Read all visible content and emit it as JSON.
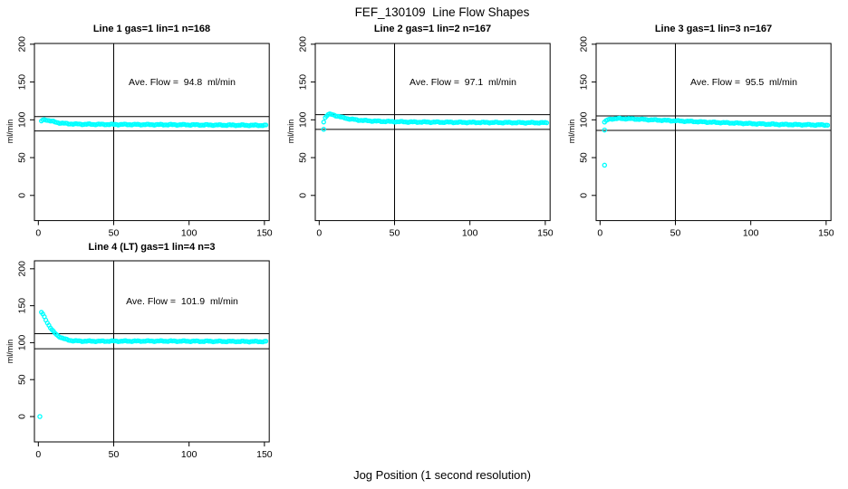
{
  "figure": {
    "title": "FEF_130109  Line Flow Shapes",
    "xlabel": "Jog Position (1 second resolution)",
    "background_color": "#ffffff",
    "point_color": "#00ffff",
    "line_color": "#000000"
  },
  "chart_data": [
    {
      "type": "scatter",
      "title": "Line 1 gas=1 lin=1 n=168",
      "gas": 1,
      "lin": 1,
      "n": 168,
      "annotation": "Ave. Flow =  94.8  ml/min",
      "ave_flow_ml_min": 94.8,
      "ylabel": "ml/min",
      "x_ticks": [
        0,
        50,
        100,
        150
      ],
      "y_ticks": [
        0,
        50,
        100,
        150,
        200
      ],
      "xlim": [
        -2.6,
        153.2
      ],
      "ylim": [
        -33.3,
        201
      ],
      "vline_x": 50,
      "hlines_y": [
        104.3,
        85.3
      ],
      "grid": false,
      "series": {
        "name": "line-1-flow",
        "anchors": [
          [
            2,
            98.3
          ],
          [
            3,
            99.6
          ],
          [
            4,
            100.2
          ],
          [
            5,
            100.1
          ],
          [
            6,
            99.6
          ],
          [
            8,
            98.6
          ],
          [
            10,
            97.6
          ],
          [
            12,
            96.7
          ],
          [
            15,
            95.7
          ],
          [
            20,
            94.8
          ],
          [
            25,
            94.4
          ],
          [
            30,
            94.2
          ],
          [
            40,
            94.0
          ],
          [
            50,
            93.9
          ],
          [
            60,
            93.8
          ],
          [
            80,
            93.6
          ],
          [
            100,
            93.4
          ],
          [
            120,
            93.1
          ],
          [
            135,
            92.9
          ],
          [
            151,
            92.7
          ]
        ]
      },
      "outliers": []
    },
    {
      "type": "scatter",
      "title": "Line 2 gas=1 lin=2 n=167",
      "gas": 1,
      "lin": 2,
      "n": 167,
      "annotation": "Ave. Flow =  97.1  ml/min",
      "ave_flow_ml_min": 97.1,
      "ylabel": "ml/min",
      "x_ticks": [
        0,
        50,
        100,
        150
      ],
      "y_ticks": [
        0,
        50,
        100,
        150,
        200
      ],
      "xlim": [
        -2.6,
        153.2
      ],
      "ylim": [
        -33.3,
        201
      ],
      "vline_x": 50,
      "hlines_y": [
        106.8,
        87.4
      ],
      "grid": false,
      "series": {
        "name": "line-2-flow",
        "anchors": [
          [
            3,
            97.5
          ],
          [
            4,
            103.0
          ],
          [
            5,
            105.5
          ],
          [
            6,
            106.8
          ],
          [
            7,
            107.3
          ],
          [
            8,
            107.2
          ],
          [
            10,
            106.2
          ],
          [
            12,
            105.1
          ],
          [
            15,
            103.3
          ],
          [
            18,
            101.9
          ],
          [
            21,
            100.9
          ],
          [
            25,
            99.9
          ],
          [
            30,
            99.0
          ],
          [
            40,
            98.1
          ],
          [
            50,
            97.6
          ],
          [
            60,
            97.2
          ],
          [
            80,
            96.9
          ],
          [
            100,
            96.6
          ],
          [
            120,
            96.4
          ],
          [
            151,
            96.1
          ]
        ]
      },
      "outliers": [
        [
          3,
          87.5
        ]
      ]
    },
    {
      "type": "scatter",
      "title": "Line 3 gas=1 lin=3 n=167",
      "gas": 1,
      "lin": 3,
      "n": 167,
      "annotation": "Ave. Flow =  95.5  ml/min",
      "ave_flow_ml_min": 95.5,
      "ylabel": "ml/min",
      "x_ticks": [
        0,
        50,
        100,
        150
      ],
      "y_ticks": [
        0,
        50,
        100,
        150,
        200
      ],
      "xlim": [
        -2.6,
        153.2
      ],
      "ylim": [
        -33.3,
        201
      ],
      "vline_x": 50,
      "hlines_y": [
        105.1,
        86.0
      ],
      "grid": false,
      "series": {
        "name": "line-3-flow",
        "anchors": [
          [
            4,
            98.5
          ],
          [
            5,
            99.8
          ],
          [
            6,
            100.6
          ],
          [
            8,
            101.3
          ],
          [
            10,
            101.6
          ],
          [
            15,
            101.6
          ],
          [
            20,
            101.4
          ],
          [
            25,
            100.9
          ],
          [
            30,
            100.4
          ],
          [
            40,
            99.5
          ],
          [
            50,
            98.7
          ],
          [
            60,
            97.9
          ],
          [
            70,
            97.1
          ],
          [
            80,
            96.4
          ],
          [
            90,
            95.7
          ],
          [
            100,
            95.0
          ],
          [
            110,
            94.4
          ],
          [
            120,
            93.9
          ],
          [
            135,
            93.5
          ],
          [
            151,
            93.1
          ]
        ]
      },
      "outliers": [
        [
          3,
          97.0
        ],
        [
          3,
          86.5
        ],
        [
          3,
          40.0
        ]
      ]
    },
    {
      "type": "scatter",
      "title": "Line 4 (LT) gas=1 lin=4 n=3",
      "gas": 1,
      "lin": 4,
      "n": 3,
      "annotation": "Ave. Flow =  101.9  ml/min",
      "ave_flow_ml_min": 101.9,
      "ylabel": "ml/min",
      "x_ticks": [
        0,
        50,
        100,
        150
      ],
      "y_ticks": [
        0,
        50,
        100,
        150,
        200
      ],
      "xlim": [
        -2.6,
        153.2
      ],
      "ylim": [
        -34.3,
        210.8
      ],
      "vline_x": 50,
      "hlines_y": [
        112.1,
        91.7
      ],
      "grid": false,
      "series": {
        "name": "line-4-flow",
        "anchors": [
          [
            2,
            141.0
          ],
          [
            3,
            138.3
          ],
          [
            4,
            134.8
          ],
          [
            5,
            131.0
          ],
          [
            6,
            127.2
          ],
          [
            7,
            123.6
          ],
          [
            8,
            120.3
          ],
          [
            9,
            117.4
          ],
          [
            10,
            114.9
          ],
          [
            11,
            112.8
          ],
          [
            12,
            111.0
          ],
          [
            13,
            109.5
          ],
          [
            14,
            108.2
          ],
          [
            15,
            107.1
          ],
          [
            16,
            106.2
          ],
          [
            17,
            105.4
          ],
          [
            18,
            104.7
          ],
          [
            19,
            104.1
          ],
          [
            20,
            103.6
          ],
          [
            22,
            102.9
          ],
          [
            25,
            102.4
          ],
          [
            30,
            102.1
          ],
          [
            40,
            102.0
          ],
          [
            60,
            102.1
          ],
          [
            80,
            102.2
          ],
          [
            100,
            102.0
          ],
          [
            120,
            101.8
          ],
          [
            151,
            101.5
          ]
        ]
      },
      "outliers": [
        [
          1,
          0
        ]
      ]
    }
  ]
}
